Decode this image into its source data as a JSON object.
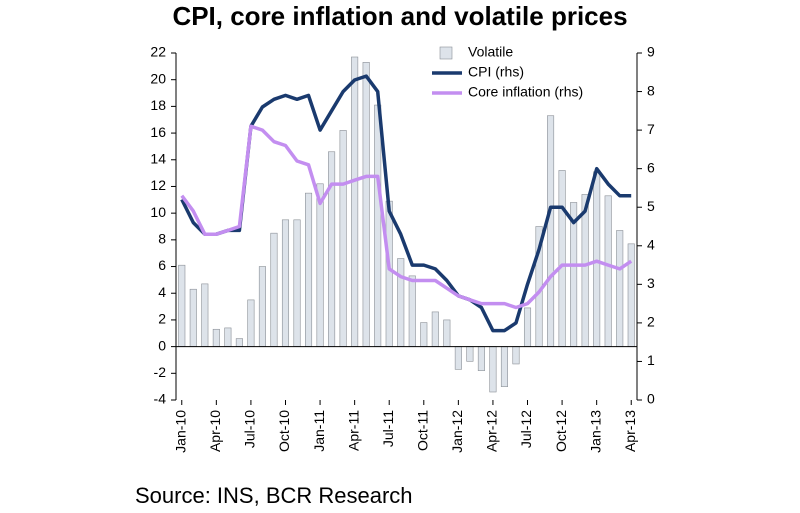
{
  "chart_data": {
    "type": "bar_line",
    "title": "CPI, core inflation and volatile prices",
    "source": "Source: INS, BCR Research",
    "categories": [
      "Jan-10",
      null,
      null,
      "Apr-10",
      null,
      null,
      "Jul-10",
      null,
      null,
      "Oct-10",
      null,
      null,
      "Jan-11",
      null,
      null,
      "Apr-11",
      null,
      null,
      "Jul-11",
      null,
      null,
      "Oct-11",
      null,
      null,
      "Jan-12",
      null,
      null,
      "Apr-12",
      null,
      null,
      "Jul-12",
      null,
      null,
      "Oct-12",
      null,
      null,
      "Jan-13",
      null,
      null,
      "Apr-13"
    ],
    "series": [
      {
        "name": "Volatile",
        "type": "bar",
        "color": "#dde3ea",
        "values": [
          6.1,
          4.3,
          4.7,
          1.3,
          1.4,
          0.6,
          3.5,
          6.0,
          8.5,
          9.5,
          9.5,
          11.5,
          12.2,
          14.6,
          16.2,
          21.7,
          21.3,
          18.1,
          10.9,
          6.6,
          5.3,
          1.8,
          2.6,
          2.0,
          -1.7,
          -1.1,
          -1.8,
          -3.4,
          -3.0,
          -1.3,
          2.9,
          9.0,
          17.3,
          13.2,
          10.8,
          11.4,
          13.1,
          11.3,
          8.7,
          7.7
        ]
      },
      {
        "name": "CPI (rhs)",
        "type": "line",
        "axis": "y2",
        "color": "#1a3a6e",
        "values": [
          5.2,
          4.6,
          4.3,
          4.3,
          4.4,
          4.4,
          7.1,
          7.6,
          7.8,
          7.9,
          7.8,
          7.9,
          7.0,
          7.5,
          8.0,
          8.3,
          8.4,
          8.0,
          4.9,
          4.3,
          3.5,
          3.5,
          3.4,
          3.1,
          2.7,
          2.6,
          2.4,
          1.8,
          1.8,
          2.0,
          3.0,
          3.9,
          5.0,
          5.0,
          4.6,
          4.9,
          6.0,
          5.6,
          5.3,
          5.3
        ]
      },
      {
        "name": "Core inflation (rhs)",
        "type": "line",
        "axis": "y2",
        "color": "#c38ef0",
        "values": [
          5.3,
          4.9,
          4.3,
          4.3,
          4.4,
          4.5,
          7.1,
          7.0,
          6.7,
          6.6,
          6.2,
          6.1,
          5.1,
          5.6,
          5.6,
          5.7,
          5.8,
          5.8,
          3.4,
          3.2,
          3.1,
          3.1,
          3.1,
          2.9,
          2.7,
          2.6,
          2.5,
          2.5,
          2.5,
          2.4,
          2.5,
          2.8,
          3.2,
          3.5,
          3.5,
          3.5,
          3.6,
          3.5,
          3.4,
          3.6
        ]
      }
    ],
    "ylim": [
      -4,
      22
    ],
    "yticks": [
      -4,
      -2,
      0,
      2,
      4,
      6,
      8,
      10,
      12,
      14,
      16,
      18,
      20,
      22
    ],
    "y2lim": [
      0,
      9
    ],
    "y2ticks": [
      0,
      1,
      2,
      3,
      4,
      5,
      6,
      7,
      8,
      9
    ],
    "legend": "top-right"
  }
}
